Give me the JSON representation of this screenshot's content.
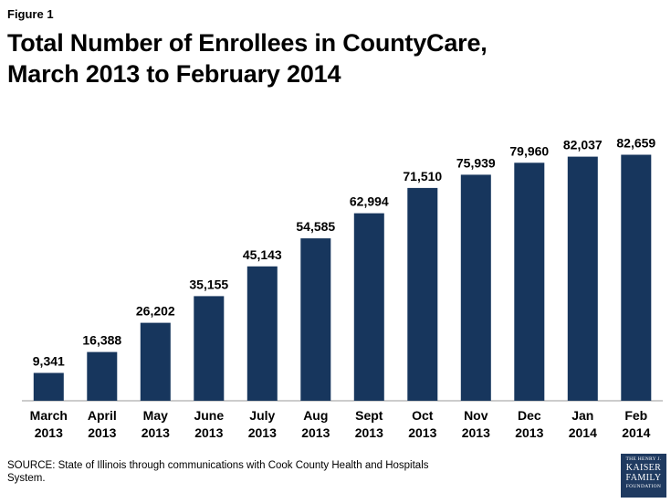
{
  "header": {
    "figure_label": "Figure 1",
    "title_line1": "Total Number of Enrollees in CountyCare,",
    "title_line2": "March 2013 to February 2014"
  },
  "chart_data": {
    "type": "bar",
    "title": "Total Number of Enrollees in CountyCare, March 2013 to February 2014",
    "categories": [
      [
        "March",
        "2013"
      ],
      [
        "April",
        "2013"
      ],
      [
        "May",
        "2013"
      ],
      [
        "June",
        "2013"
      ],
      [
        "July",
        "2013"
      ],
      [
        "Aug",
        "2013"
      ],
      [
        "Sept",
        "2013"
      ],
      [
        "Oct",
        "2013"
      ],
      [
        "Nov",
        "2013"
      ],
      [
        "Dec",
        "2013"
      ],
      [
        "Jan",
        "2014"
      ],
      [
        "Feb",
        "2014"
      ]
    ],
    "values": [
      9341,
      16388,
      26202,
      35155,
      45143,
      54585,
      62994,
      71510,
      75939,
      79960,
      82037,
      82659
    ],
    "data_labels": [
      "9,341",
      "16,388",
      "26,202",
      "35,155",
      "45,143",
      "54,585",
      "62,994",
      "71,510",
      "75,939",
      "79,960",
      "82,037",
      "82,659"
    ],
    "xlabel": "",
    "ylabel": "",
    "ylim": [
      0,
      90000
    ],
    "grid": false,
    "bar_color": "#17365d"
  },
  "footer": {
    "source": "SOURCE: State of Illinois  through communications with Cook County Health and  Hospitals System.",
    "logo_lines": [
      "THE HENRY J.",
      "KAISER",
      "FAMILY",
      "FOUNDATION"
    ],
    "logo_color": "#1f3a60"
  }
}
